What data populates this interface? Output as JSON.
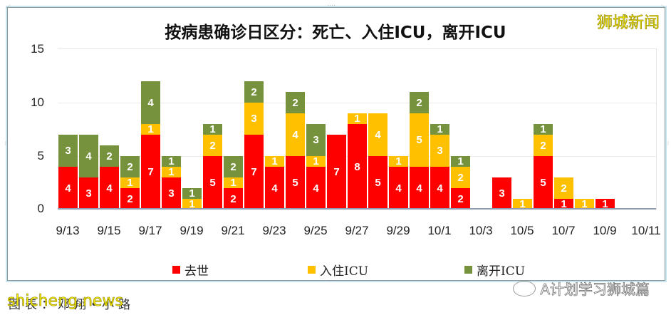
{
  "chart_data": {
    "type": "bar",
    "stacked": true,
    "title": "按病患确诊日区分：死亡、入住ICU，离开ICU",
    "xlabel": "",
    "ylabel": "",
    "ylim": [
      0,
      15
    ],
    "yticks": [
      0,
      5,
      10,
      15
    ],
    "grid": true,
    "legend_position": "bottom",
    "categories": [
      "9/13",
      "9/14",
      "9/15",
      "9/16",
      "9/17",
      "9/18",
      "9/19",
      "9/20",
      "9/21",
      "9/22",
      "9/23",
      "9/24",
      "9/25",
      "9/26",
      "9/27",
      "9/28",
      "9/29",
      "9/30",
      "10/1",
      "10/2",
      "10/3",
      "10/4",
      "10/5",
      "10/6",
      "10/7",
      "10/8",
      "10/9",
      "10/10",
      "10/11"
    ],
    "xtick_labels": [
      "9/13",
      "9/15",
      "9/17",
      "9/19",
      "9/21",
      "9/23",
      "9/25",
      "9/27",
      "9/29",
      "10/1",
      "10/3",
      "10/5",
      "10/7",
      "10/9",
      "10/11"
    ],
    "series": [
      {
        "name": "去世",
        "color": "#ff0000",
        "values": [
          4,
          3,
          4,
          2,
          7,
          3,
          0,
          5,
          2,
          7,
          4,
          5,
          4,
          7,
          8,
          5,
          4,
          4,
          4,
          2,
          0,
          3,
          0,
          5,
          1,
          0,
          1,
          0,
          0
        ]
      },
      {
        "name": "入住ICU",
        "color": "#ffc000",
        "values": [
          0,
          0,
          0,
          1,
          1,
          1,
          1,
          2,
          1,
          3,
          1,
          4,
          1,
          0,
          1,
          4,
          1,
          5,
          3,
          2,
          0,
          0,
          1,
          2,
          2,
          1,
          0,
          0,
          0
        ]
      },
      {
        "name": "离开ICU",
        "color": "#76923c",
        "values": [
          3,
          4,
          2,
          2,
          4,
          1,
          1,
          1,
          2,
          2,
          0,
          2,
          3,
          0,
          0,
          0,
          0,
          2,
          1,
          1,
          0,
          0,
          0,
          1,
          0,
          0,
          0,
          0,
          0
        ]
      }
    ]
  },
  "header": {
    "title": "按病患确诊日区分：死亡、入住ICU，离开ICU",
    "watermark": "狮城新闻"
  },
  "legend": {
    "items": [
      {
        "label": "去世",
        "color": "#ff0000"
      },
      {
        "label": "入住ICU",
        "color": "#ffc000"
      },
      {
        "label": "离开ICU",
        "color": "#76923c"
      }
    ]
  },
  "footer": {
    "source_label": "图表：邓翔•小路",
    "watermark_left": "shicheng.news",
    "watermark_right": "A计划学习狮城篇"
  }
}
